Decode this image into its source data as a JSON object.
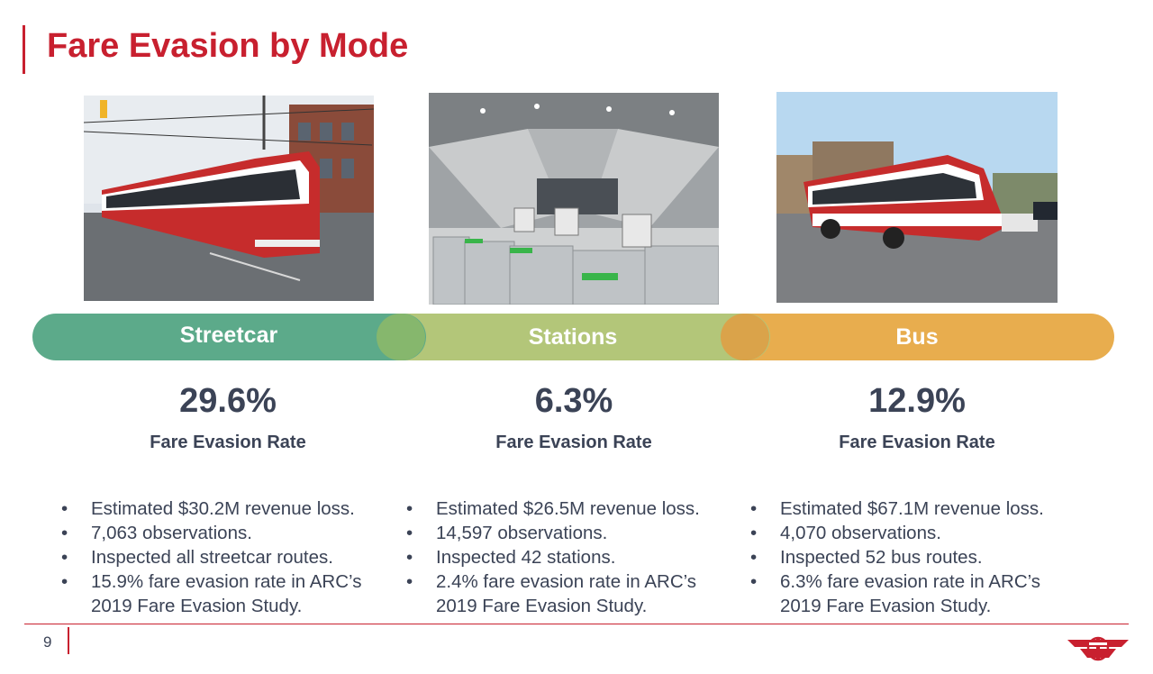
{
  "slide": {
    "title": "Fare Evasion by Mode",
    "page_number": "9"
  },
  "modes": [
    {
      "name": "Streetcar",
      "rate": "29.6%",
      "rate_label": "Fare Evasion Rate",
      "color": "#5caa8a",
      "bullets": [
        "Estimated $30.2M revenue loss.",
        "7,063 observations.",
        "Inspected all streetcar routes.",
        "15.9% fare evasion rate in ARC’s 2019 Fare Evasion Study."
      ]
    },
    {
      "name": "Stations",
      "rate": "6.3%",
      "rate_label": "Fare Evasion Rate",
      "color": "#b3c679",
      "bullets": [
        "Estimated $26.5M revenue loss.",
        "14,597 observations.",
        "Inspected 42 stations.",
        "2.4% fare evasion rate in ARC’s 2019 Fare Evasion Study."
      ]
    },
    {
      "name": "Bus",
      "rate": "12.9%",
      "rate_label": "Fare Evasion Rate",
      "color": "#e8ad4e",
      "bullets": [
        "Estimated $67.1M revenue loss.",
        "4,070 observations.",
        "Inspected 52 bus routes.",
        "6.3% fare evasion rate in ARC’s 2019 Fare Evasion Study."
      ]
    }
  ],
  "brand": {
    "accent": "#c8202f",
    "text": "#3b4356",
    "logo_icon": "ttc-logo-icon"
  },
  "photos": [
    "streetcar-photo",
    "station-fare-gates-photo",
    "bus-photo"
  ]
}
